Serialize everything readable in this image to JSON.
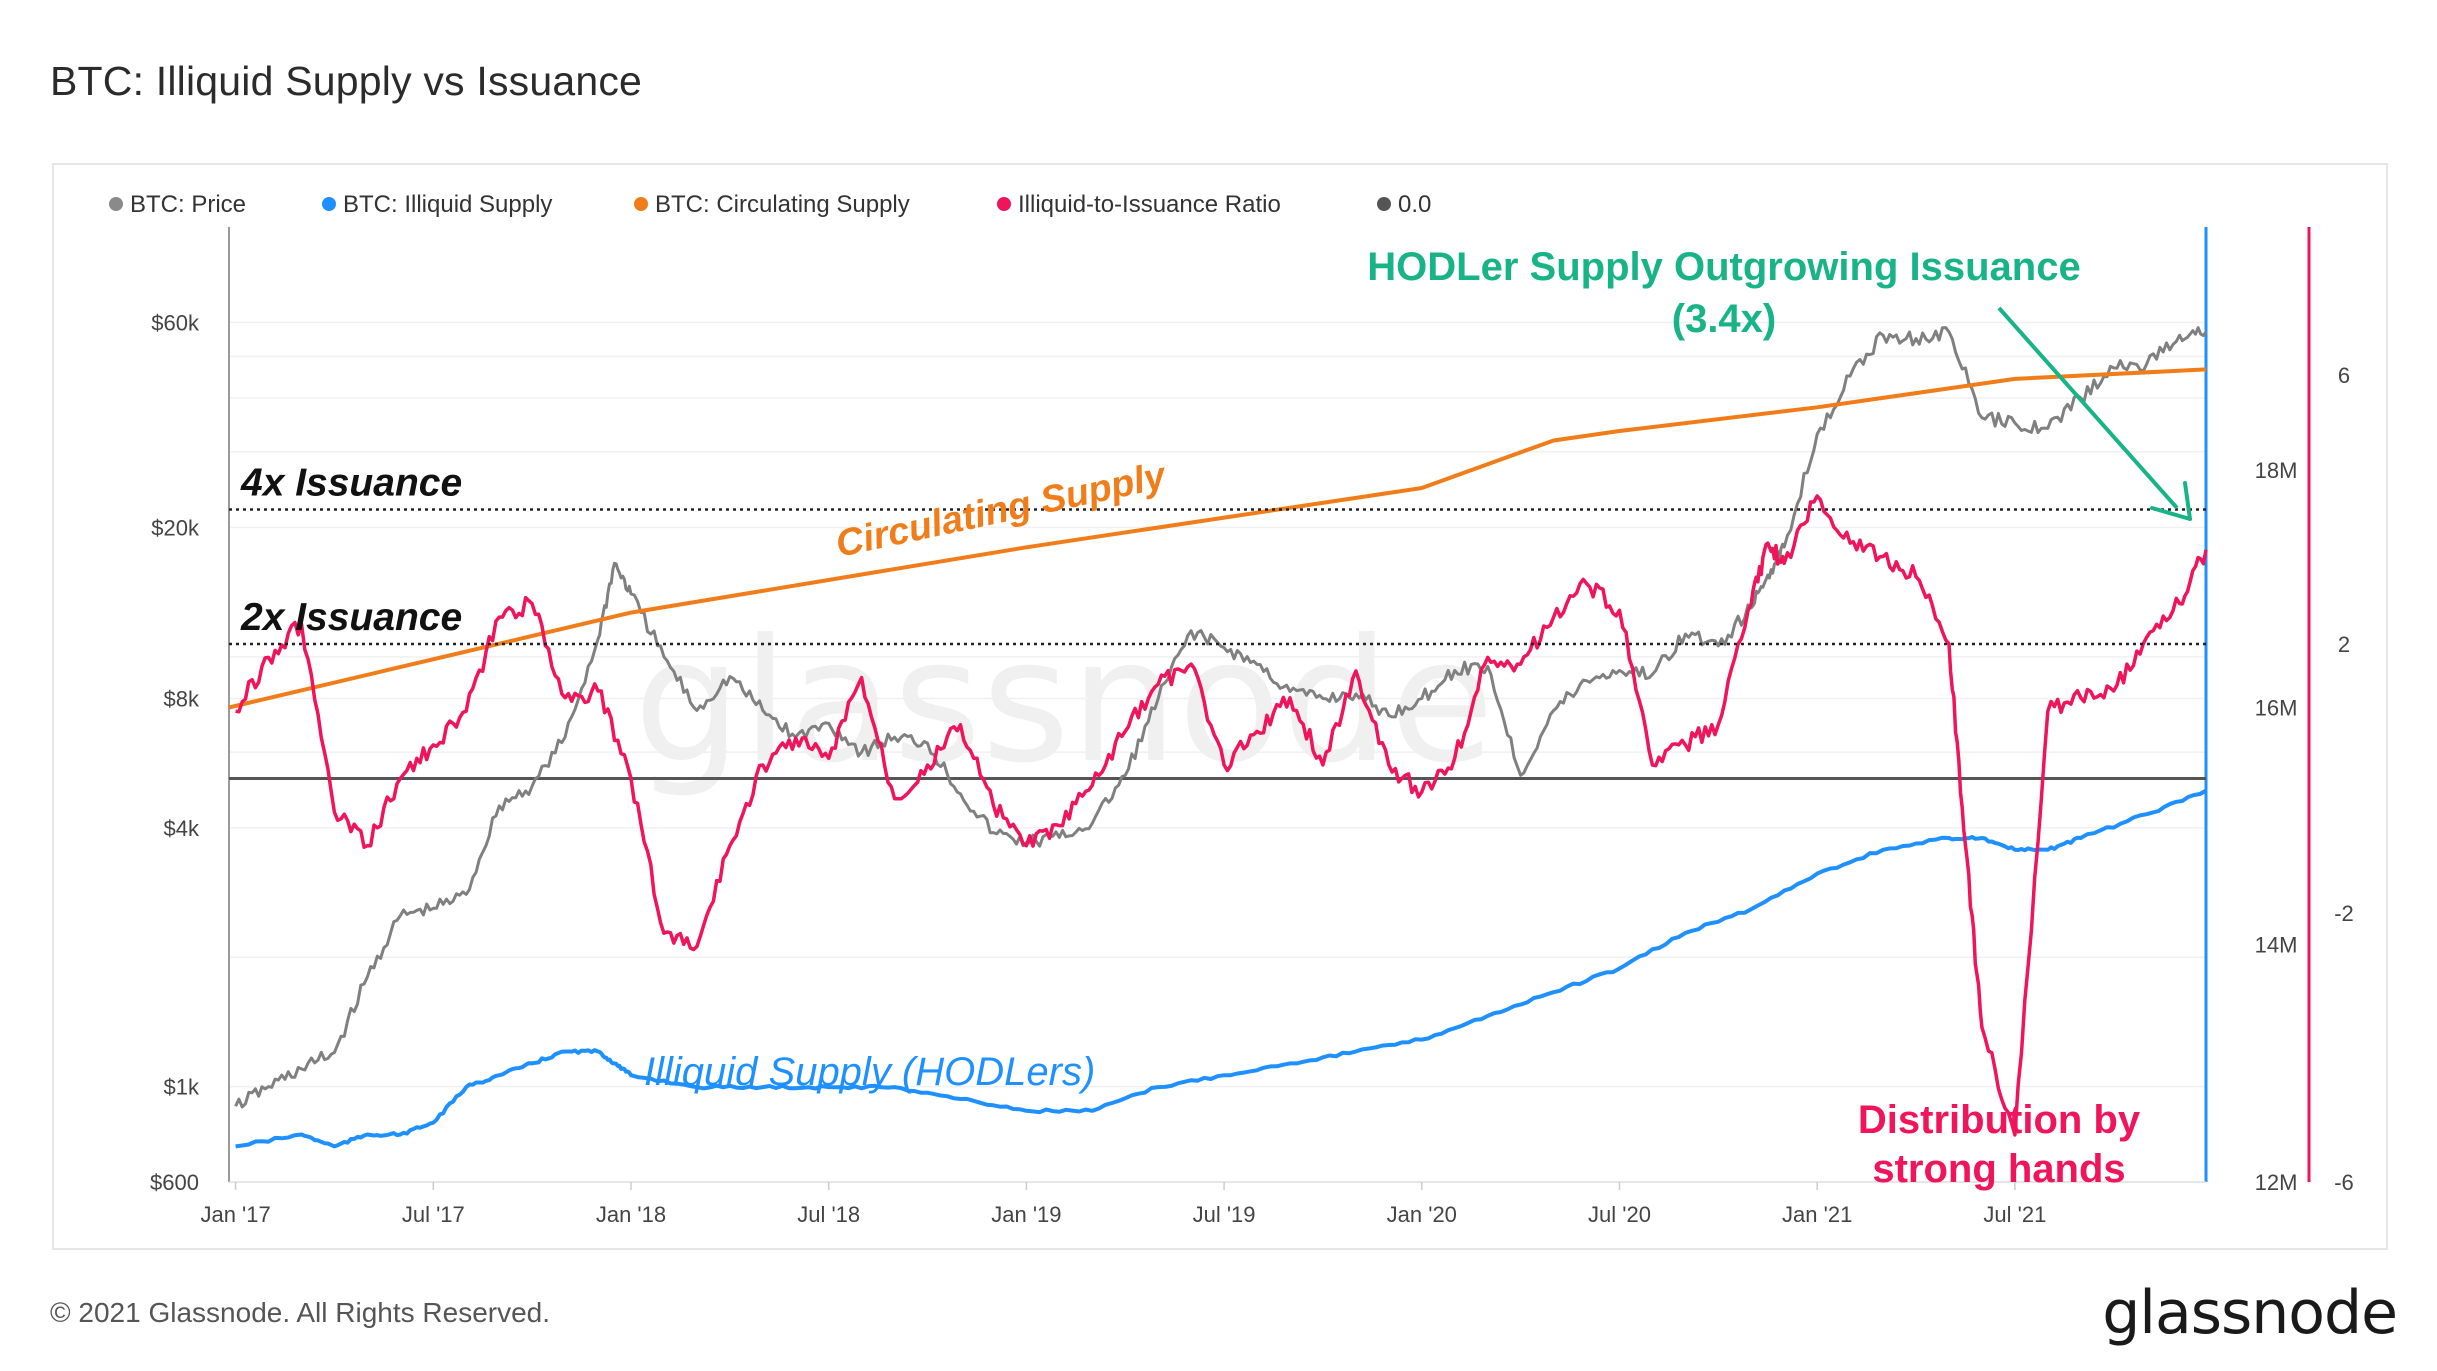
{
  "title": "BTC: Illiquid Supply vs Issuance",
  "footer": {
    "copyright": "© 2021 Glassnode. All Rights Reserved.",
    "brand": "glassnode",
    "watermark": "glassnode"
  },
  "colors": {
    "price": "#808080",
    "illiquid": "#1e90ff",
    "circulating": "#f07c1a",
    "ratio": "#f0145a",
    "zero": "#555555",
    "annotation_green": "#19b388"
  },
  "legend": [
    {
      "label": "BTC: Price",
      "color": "#8a8a8a"
    },
    {
      "label": "BTC: Illiquid Supply",
      "color": "#1e90ff"
    },
    {
      "label": "BTC: Circulating Supply",
      "color": "#f07c1a"
    },
    {
      "label": "Illiquid-to-Issuance Ratio",
      "color": "#f0145a"
    },
    {
      "label": "0.0",
      "color": "#555555"
    }
  ],
  "chart_data": {
    "type": "line",
    "x_ticks": [
      "Jan '17",
      "Jul '17",
      "Jan '18",
      "Jul '18",
      "Jan '19",
      "Jul '19",
      "Jan '20",
      "Jul '20",
      "Jan '21",
      "Jul '21"
    ],
    "x_tick_pos": [
      0,
      6,
      12,
      18,
      24,
      30,
      36,
      42,
      48,
      54
    ],
    "x_range": [
      -0.2,
      59.8
    ],
    "price_axis": {
      "scale": "log",
      "ticks": [
        "$600",
        "$1k",
        "$4k",
        "$8k",
        "$20k",
        "$60k"
      ],
      "tick_values": [
        600,
        1000,
        4000,
        8000,
        20000,
        60000
      ],
      "range": [
        600,
        100000
      ]
    },
    "supply_axis": {
      "ticks": [
        "12M",
        "14M",
        "16M",
        "18M"
      ],
      "tick_values": [
        12,
        14,
        16,
        18
      ],
      "range": [
        12,
        20.05
      ]
    },
    "ratio_axis": {
      "ticks": [
        "-6",
        "-2",
        "2",
        "6"
      ],
      "tick_values": [
        -6,
        -2,
        2,
        6
      ],
      "range": [
        -6,
        8.2
      ]
    },
    "series": [
      {
        "name": "BTC: Price",
        "axis": "price",
        "x": [
          0,
          1,
          2,
          3,
          4,
          5,
          6,
          7,
          8,
          9,
          10,
          11,
          11.5,
          12,
          13,
          14,
          15,
          16,
          17,
          18,
          19,
          20,
          21,
          22,
          23,
          24,
          25,
          26,
          27,
          28,
          29,
          30,
          31,
          32,
          33,
          34,
          35,
          36,
          37,
          38,
          39,
          40,
          41,
          42,
          43,
          44,
          45,
          46,
          46.5,
          47,
          48,
          49,
          50,
          51,
          52,
          53,
          54,
          55,
          56,
          57,
          58,
          59,
          59.8
        ],
        "values": [
          900,
          1000,
          1100,
          1200,
          1800,
          2500,
          2600,
          2800,
          4500,
          5000,
          6500,
          11000,
          16500,
          14000,
          10000,
          7500,
          9000,
          7500,
          6500,
          7000,
          6000,
          6500,
          6300,
          4800,
          3900,
          3700,
          3800,
          4100,
          5300,
          8000,
          11500,
          10500,
          9600,
          8300,
          8000,
          8200,
          7300,
          8000,
          9300,
          9500,
          5300,
          7500,
          8800,
          9300,
          9100,
          11300,
          10600,
          13000,
          15500,
          18000,
          33000,
          45000,
          56000,
          55000,
          57000,
          36000,
          35000,
          34000,
          40000,
          47000,
          48000,
          56000,
          57000
        ]
      },
      {
        "name": "BTC: Illiquid Supply",
        "axis": "supply",
        "x": [
          0,
          2,
          3,
          4,
          5,
          6,
          7,
          8,
          9,
          10,
          11,
          11.5,
          12,
          14,
          16,
          18,
          20,
          22,
          24,
          26,
          28,
          30,
          32,
          34,
          36,
          38,
          40,
          42,
          44,
          46,
          48,
          50,
          52,
          53,
          54,
          55,
          56,
          58,
          59.8
        ],
        "values": [
          12.3,
          12.4,
          12.3,
          12.4,
          12.4,
          12.5,
          12.8,
          12.9,
          13.0,
          13.1,
          13.1,
          13.0,
          12.9,
          12.8,
          12.8,
          12.8,
          12.8,
          12.7,
          12.6,
          12.6,
          12.8,
          12.9,
          13.0,
          13.1,
          13.2,
          13.4,
          13.6,
          13.8,
          14.1,
          14.3,
          14.6,
          14.8,
          14.9,
          14.9,
          14.8,
          14.8,
          14.9,
          15.1,
          15.3
        ]
      },
      {
        "name": "BTC: Circulating Supply",
        "axis": "supply",
        "x": [
          -0.2,
          12,
          24,
          36,
          40,
          42,
          48,
          54,
          59.8
        ],
        "values": [
          16.0,
          16.8,
          17.35,
          17.85,
          18.25,
          18.33,
          18.53,
          18.77,
          18.85
        ]
      },
      {
        "name": "Illiquid-to-Issuance Ratio",
        "axis": "ratio",
        "x": [
          0,
          1,
          2,
          3,
          4,
          5,
          6,
          7,
          8,
          9,
          10,
          11,
          12,
          13,
          14,
          15,
          16,
          17,
          18,
          19,
          20,
          21,
          22,
          23,
          24,
          25,
          26,
          27,
          28,
          29,
          30,
          31,
          32,
          33,
          34,
          35,
          36,
          37,
          38,
          39,
          40,
          41,
          42,
          43,
          44,
          45,
          46,
          46.5,
          47,
          48,
          49,
          50,
          51,
          52,
          52.5,
          53,
          54,
          55,
          56,
          57,
          58,
          59,
          59.8
        ],
        "values": [
          1.0,
          1.8,
          2.3,
          -0.5,
          -1.0,
          0.0,
          0.5,
          1.0,
          2.4,
          2.6,
          1.2,
          1.3,
          0.0,
          -2.3,
          -2.5,
          -1.0,
          0.2,
          0.6,
          0.3,
          1.5,
          -0.3,
          0.2,
          0.8,
          -0.4,
          -1.0,
          -0.7,
          -0.1,
          0.7,
          1.4,
          1.7,
          0.2,
          0.7,
          1.2,
          0.2,
          1.6,
          0.2,
          -0.2,
          0.3,
          1.8,
          1.7,
          2.4,
          2.9,
          2.5,
          0.2,
          0.5,
          0.8,
          2.6,
          3.5,
          3.2,
          4.2,
          3.5,
          3.3,
          3.0,
          2.0,
          -1.0,
          -3.7,
          -5.3,
          1.0,
          1.2,
          1.3,
          2.1,
          2.6,
          3.4
        ]
      },
      {
        "name": "0.0",
        "axis": "ratio",
        "x": [
          -0.2,
          59.8
        ],
        "values": [
          0,
          0
        ]
      }
    ],
    "reference_lines": [
      {
        "label": "4x Issuance",
        "axis": "ratio",
        "value": 4
      },
      {
        "label": "2x Issuance",
        "axis": "ratio",
        "value": 2
      }
    ],
    "annotations": {
      "circulating": "Circulating Supply",
      "illiquid": "Illiquid Supply (HODLers)",
      "hodler_line1": "HODLer Supply Outgrowing Issuance",
      "hodler_line2": "(3.4x)",
      "distribution_line1": "Distribution by",
      "distribution_line2": "strong hands"
    }
  }
}
